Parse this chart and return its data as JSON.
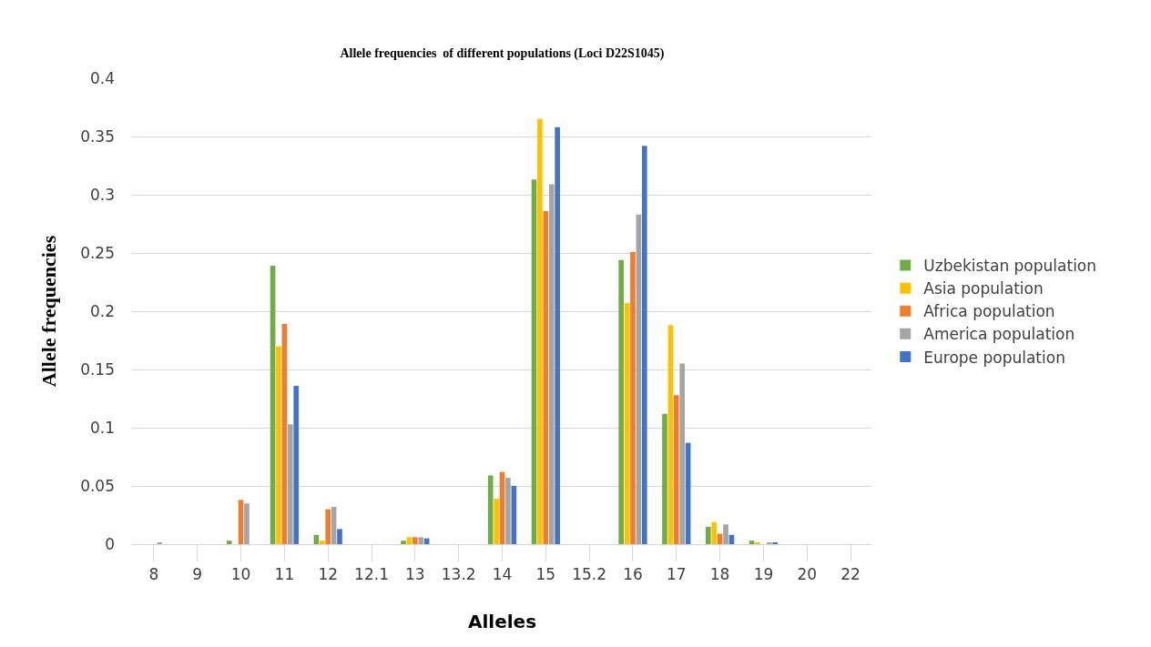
{
  "chart_data": {
    "type": "bar",
    "title": "Allele frequencies  of different populations (Loci D22S1045)",
    "xlabel": "Alleles",
    "ylabel": "Allele frequencies",
    "categories": [
      "8",
      "9",
      "10",
      "11",
      "12",
      "12.1",
      "13",
      "13.2",
      "14",
      "15",
      "15.2",
      "16",
      "17",
      "18",
      "19",
      "20",
      "22"
    ],
    "series": [
      {
        "name": "Uzbekistan population",
        "color": "#70ad47",
        "values": [
          null,
          null,
          0.003,
          0.239,
          0.008,
          null,
          0.003,
          null,
          0.059,
          0.313,
          null,
          0.244,
          0.112,
          0.015,
          0.003,
          null,
          null
        ]
      },
      {
        "name": "Asia population",
        "color": "#ffc000",
        "values": [
          null,
          null,
          null,
          0.17,
          0.003,
          null,
          0.006,
          null,
          0.039,
          0.365,
          null,
          0.207,
          0.188,
          0.019,
          0.001,
          null,
          null
        ]
      },
      {
        "name": "Africa population",
        "color": "#ed7d31",
        "values": [
          null,
          null,
          0.038,
          0.189,
          0.03,
          null,
          0.006,
          null,
          0.062,
          0.286,
          null,
          0.251,
          0.128,
          0.009,
          null,
          null,
          null
        ]
      },
      {
        "name": "America population",
        "color": "#a5a5a5",
        "values": [
          0.001,
          null,
          0.035,
          0.103,
          0.032,
          null,
          0.006,
          null,
          0.057,
          0.309,
          null,
          0.283,
          0.155,
          0.017,
          0.001,
          null,
          null
        ]
      },
      {
        "name": "Europe population",
        "color": "#4472c4",
        "values": [
          null,
          null,
          null,
          0.136,
          0.013,
          null,
          0.005,
          null,
          0.05,
          0.358,
          null,
          0.342,
          0.087,
          0.008,
          0.001,
          null,
          null
        ]
      }
    ],
    "ylim": [
      0,
      0.4
    ],
    "yticks": [
      0,
      0.05,
      0.1,
      0.15,
      0.2,
      0.25,
      0.3,
      0.35,
      0.4
    ],
    "grid": "y",
    "legend": "right"
  }
}
